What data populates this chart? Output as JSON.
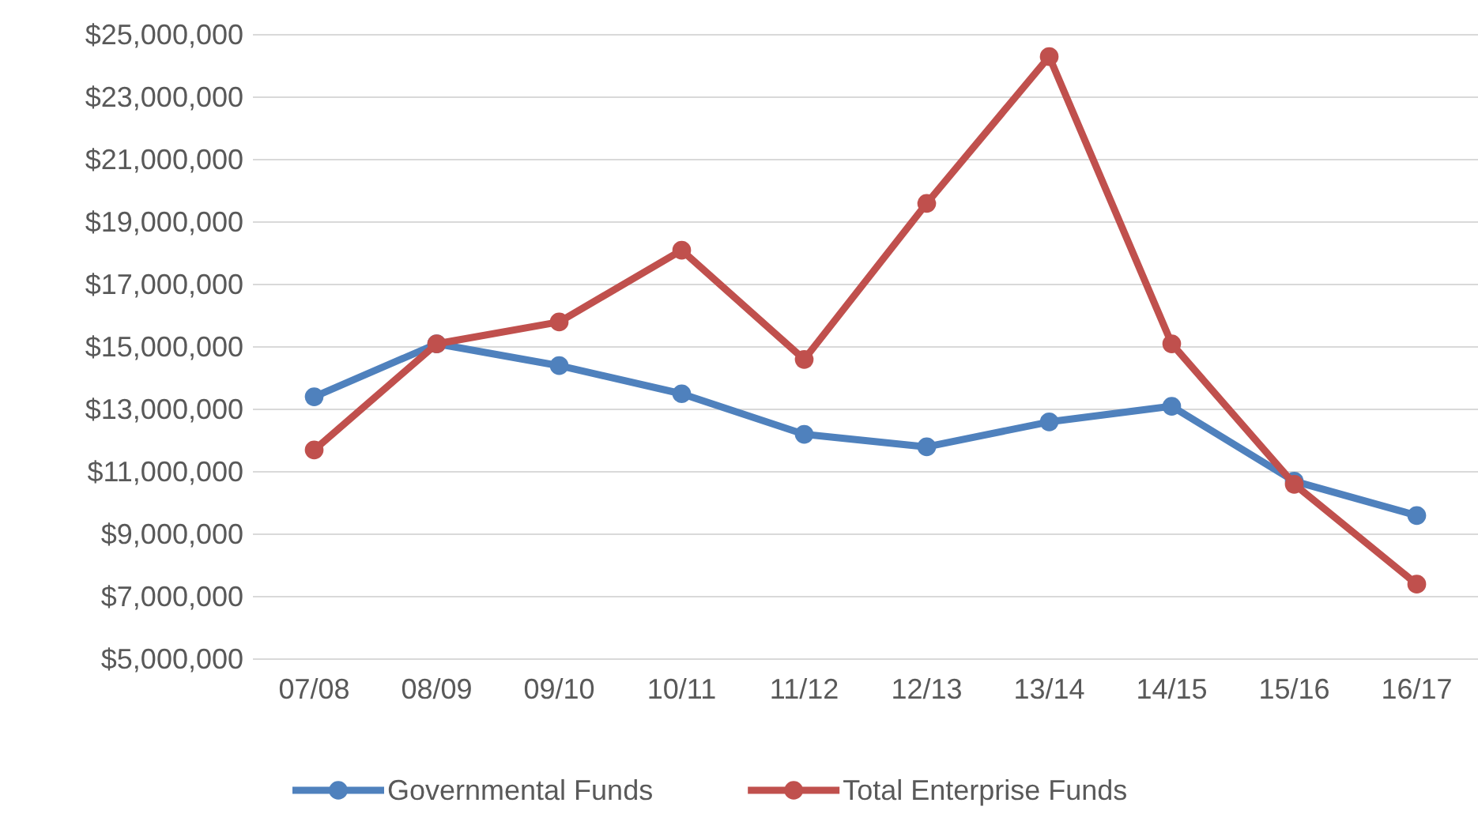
{
  "chart_data": {
    "type": "line",
    "categories": [
      "07/08",
      "08/09",
      "09/10",
      "10/11",
      "11/12",
      "12/13",
      "13/14",
      "14/15",
      "15/16",
      "16/17"
    ],
    "series": [
      {
        "name": "Governmental Funds",
        "color": "#4f81bd",
        "values": [
          13400000,
          15100000,
          14400000,
          13500000,
          12200000,
          11800000,
          12600000,
          13100000,
          10700000,
          9600000
        ]
      },
      {
        "name": "Total Enterprise Funds",
        "color": "#c0504d",
        "values": [
          11700000,
          15100000,
          15800000,
          18100000,
          14600000,
          19600000,
          24300000,
          15100000,
          10600000,
          7400000
        ]
      }
    ],
    "ylim": [
      5000000,
      25000000
    ],
    "yticks": [
      {
        "value": 5000000,
        "label": "$5,000,000"
      },
      {
        "value": 7000000,
        "label": "$7,000,000"
      },
      {
        "value": 9000000,
        "label": "$9,000,000"
      },
      {
        "value": 11000000,
        "label": "$11,000,000"
      },
      {
        "value": 13000000,
        "label": "$13,000,000"
      },
      {
        "value": 15000000,
        "label": "$15,000,000"
      },
      {
        "value": 17000000,
        "label": "$17,000,000"
      },
      {
        "value": 19000000,
        "label": "$19,000,000"
      },
      {
        "value": 21000000,
        "label": "$21,000,000"
      },
      {
        "value": 23000000,
        "label": "$23,000,000"
      },
      {
        "value": 25000000,
        "label": "$25,000,000"
      }
    ],
    "grid": "y",
    "legend": "bottom",
    "marker": "circle",
    "line_style": "solid"
  }
}
